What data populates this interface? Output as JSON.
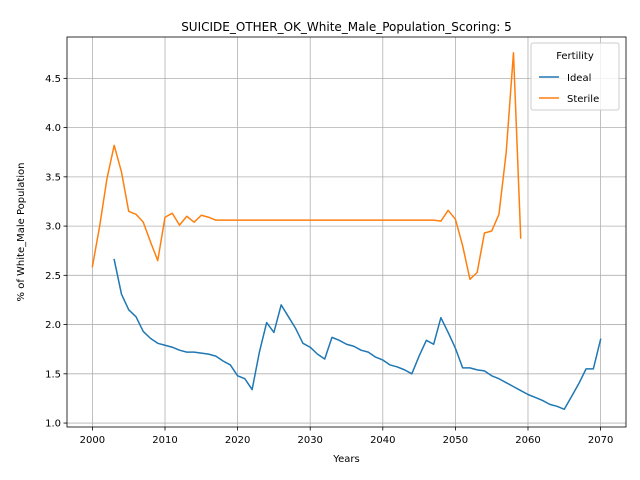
{
  "chart_data": {
    "type": "line",
    "title": "SUICIDE_OTHER_OK_White_Male_Population_Scoring: 5",
    "xlabel": "Years",
    "ylabel": "% of White_Male Population",
    "xlim": [
      1996.5,
      2073.5
    ],
    "ylim": [
      0.96,
      4.92
    ],
    "xticks": [
      2000,
      2010,
      2020,
      2030,
      2040,
      2050,
      2060,
      2070
    ],
    "yticks": [
      1.0,
      1.5,
      2.0,
      2.5,
      3.0,
      3.5,
      4.0,
      4.5
    ],
    "ytick_labels": [
      "1.0",
      "1.5",
      "2.0",
      "2.5",
      "3.0",
      "3.5",
      "4.0",
      "4.5"
    ],
    "grid": true,
    "legend": {
      "title": "Fertility",
      "position": "top-right"
    },
    "series": [
      {
        "name": "Ideal",
        "color": "#1f77b4",
        "x": [
          2003,
          2004,
          2005,
          2006,
          2007,
          2008,
          2009,
          2010,
          2011,
          2012,
          2013,
          2014,
          2015,
          2016,
          2017,
          2018,
          2019,
          2020,
          2021,
          2022,
          2023,
          2024,
          2025,
          2026,
          2027,
          2028,
          2029,
          2030,
          2031,
          2032,
          2033,
          2034,
          2035,
          2036,
          2037,
          2038,
          2039,
          2040,
          2041,
          2042,
          2043,
          2044,
          2045,
          2046,
          2047,
          2048,
          2049,
          2050,
          2051,
          2052,
          2053,
          2054,
          2055,
          2056,
          2057,
          2058,
          2059,
          2060,
          2061,
          2062,
          2063,
          2064,
          2065,
          2066,
          2067,
          2068,
          2069,
          2070
        ],
        "y": [
          2.66,
          2.31,
          2.15,
          2.08,
          1.93,
          1.86,
          1.81,
          1.79,
          1.77,
          1.74,
          1.72,
          1.72,
          1.71,
          1.7,
          1.68,
          1.63,
          1.59,
          1.48,
          1.45,
          1.34,
          1.72,
          2.02,
          1.92,
          2.2,
          2.08,
          1.96,
          1.81,
          1.77,
          1.7,
          1.65,
          1.87,
          1.84,
          1.8,
          1.78,
          1.74,
          1.72,
          1.67,
          1.64,
          1.59,
          1.57,
          1.54,
          1.5,
          1.68,
          1.84,
          1.8,
          2.07,
          1.92,
          1.76,
          1.56,
          1.56,
          1.54,
          1.53,
          1.48,
          1.45,
          1.41,
          1.37,
          1.33,
          1.29,
          1.26,
          1.23,
          1.19,
          1.17,
          1.14,
          1.27,
          1.4,
          1.55,
          1.55,
          1.85
        ]
      },
      {
        "name": "Sterile",
        "color": "#ff7f0e",
        "x": [
          2000,
          2001,
          2002,
          2003,
          2004,
          2005,
          2006,
          2007,
          2008,
          2009,
          2010,
          2011,
          2012,
          2013,
          2014,
          2015,
          2016,
          2017,
          2018,
          2019,
          2020,
          2021,
          2022,
          2023,
          2024,
          2025,
          2026,
          2027,
          2028,
          2029,
          2030,
          2031,
          2032,
          2033,
          2034,
          2035,
          2036,
          2037,
          2038,
          2039,
          2040,
          2041,
          2042,
          2043,
          2044,
          2045,
          2046,
          2047,
          2048,
          2049,
          2050,
          2051,
          2052,
          2053,
          2054,
          2055,
          2056,
          2057,
          2058,
          2059
        ],
        "y": [
          2.59,
          3.0,
          3.48,
          3.82,
          3.55,
          3.15,
          3.12,
          3.04,
          2.84,
          2.65,
          3.09,
          3.13,
          3.01,
          3.1,
          3.04,
          3.11,
          3.09,
          3.06,
          3.06,
          3.06,
          3.06,
          3.06,
          3.06,
          3.06,
          3.06,
          3.06,
          3.06,
          3.06,
          3.06,
          3.06,
          3.06,
          3.06,
          3.06,
          3.06,
          3.06,
          3.06,
          3.06,
          3.06,
          3.06,
          3.06,
          3.06,
          3.06,
          3.06,
          3.06,
          3.06,
          3.06,
          3.06,
          3.06,
          3.05,
          3.16,
          3.07,
          2.8,
          2.46,
          2.53,
          2.93,
          2.95,
          3.12,
          3.75,
          4.76,
          2.88
        ]
      }
    ]
  }
}
